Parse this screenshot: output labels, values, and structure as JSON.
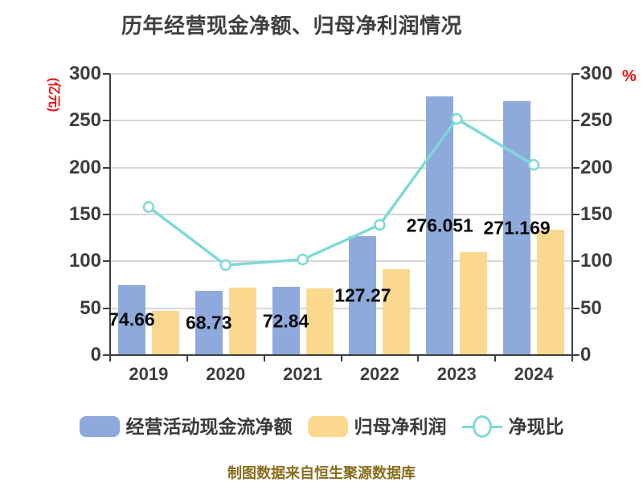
{
  "title": "历年经营现金净额、归母净利润情况",
  "footer": "制图数据来自恒生聚源数据库",
  "colors": {
    "bar_cashflow": "#8ea9db",
    "bar_profit": "#fad98e",
    "line_ratio": "#7ed9d6",
    "axis_text": "#3d3d3d",
    "axis_line": "#3b3f3e",
    "gridline": "#d7d7d7",
    "accent_red": "#ee1111",
    "footer_gold": "#8a6d1d",
    "title_gray": "#3f3f3f",
    "label_black": "#0b0b0b"
  },
  "chart_data": {
    "type": "bar",
    "subtype": "combo-bar-line-dual-axis",
    "title": "历年经营现金净额、归母净利润情况",
    "categories": [
      "2019",
      "2020",
      "2021",
      "2022",
      "2023",
      "2024"
    ],
    "left_axis": {
      "label": "(亿元)",
      "ticks": [
        300,
        250,
        200,
        150,
        100,
        50,
        0
      ],
      "min": 0,
      "max": 300
    },
    "right_axis": {
      "label": "%",
      "ticks": [
        300,
        250,
        200,
        150,
        100,
        50,
        0
      ],
      "min": 0,
      "max": 300
    },
    "grid": true,
    "legend_position": "bottom",
    "series": [
      {
        "name": "经营活动现金流净额",
        "type": "bar",
        "axis": "left",
        "color": "#8ea9db",
        "values": [
          74.66,
          68.73,
          72.84,
          127.27,
          276.051,
          271.169
        ],
        "value_labels": [
          "74.66",
          "68.73",
          "72.84",
          "127.27",
          "276.051",
          "271.169"
        ]
      },
      {
        "name": "归母净利润",
        "type": "bar",
        "axis": "left",
        "color": "#fad98e",
        "values": [
          47.2,
          71.6,
          71.4,
          91.6,
          109.5,
          133.6
        ]
      },
      {
        "name": "净现比",
        "type": "line",
        "axis": "right",
        "color": "#7ed9d6",
        "marker": "circle-white-fill",
        "values": [
          158,
          96,
          102,
          139,
          252,
          203
        ]
      }
    ]
  }
}
